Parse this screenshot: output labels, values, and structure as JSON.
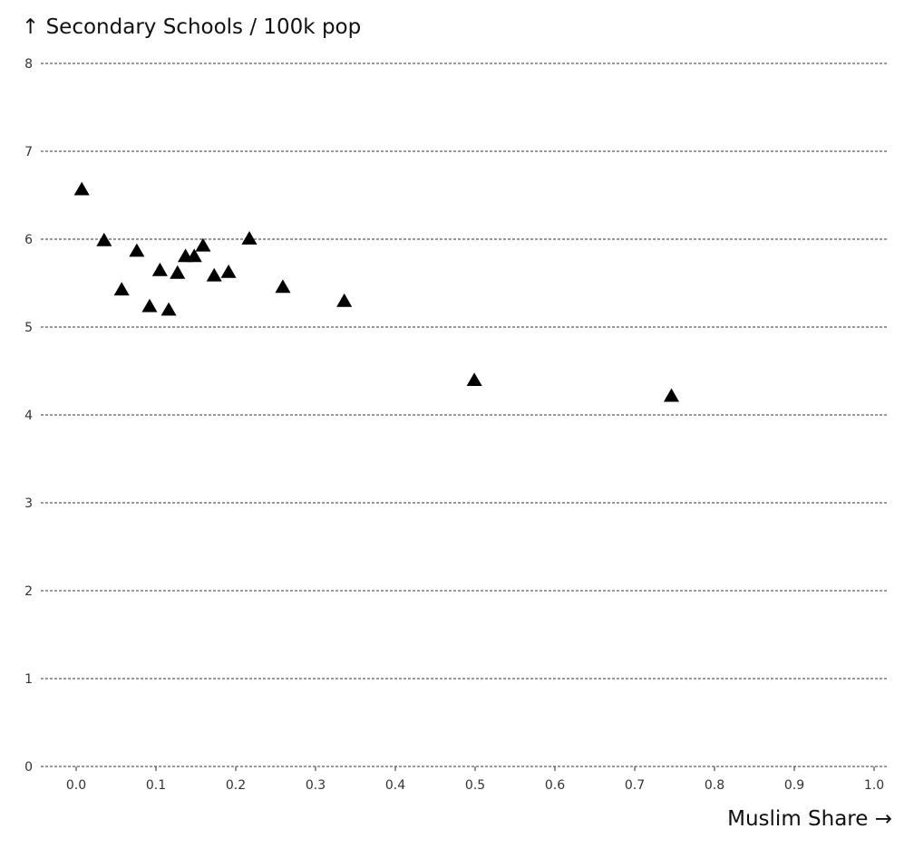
{
  "chart_data": {
    "type": "scatter",
    "ylabel": "↑ Secondary Schools / 100k pop",
    "xlabel": "Muslim Share →",
    "xlim": [
      0.0,
      1.0
    ],
    "ylim": [
      0,
      8
    ],
    "x_ticks": [
      "0.0",
      "0.1",
      "0.2",
      "0.3",
      "0.4",
      "0.5",
      "0.6",
      "0.7",
      "0.8",
      "0.9",
      "1.0"
    ],
    "y_ticks": [
      "0",
      "1",
      "2",
      "3",
      "4",
      "5",
      "6",
      "7",
      "8"
    ],
    "grid": "horizontal-dashed",
    "marker": "triangle",
    "marker_color": "#000000",
    "points": [
      {
        "x": 0.007,
        "y": 6.56
      },
      {
        "x": 0.035,
        "y": 5.98
      },
      {
        "x": 0.057,
        "y": 5.42
      },
      {
        "x": 0.076,
        "y": 5.86
      },
      {
        "x": 0.092,
        "y": 5.23
      },
      {
        "x": 0.105,
        "y": 5.64
      },
      {
        "x": 0.116,
        "y": 5.19
      },
      {
        "x": 0.127,
        "y": 5.61
      },
      {
        "x": 0.137,
        "y": 5.8
      },
      {
        "x": 0.148,
        "y": 5.8
      },
      {
        "x": 0.159,
        "y": 5.92
      },
      {
        "x": 0.173,
        "y": 5.58
      },
      {
        "x": 0.191,
        "y": 5.62
      },
      {
        "x": 0.217,
        "y": 6.0
      },
      {
        "x": 0.259,
        "y": 5.45
      },
      {
        "x": 0.336,
        "y": 5.29
      },
      {
        "x": 0.499,
        "y": 4.39
      },
      {
        "x": 0.746,
        "y": 4.21
      }
    ]
  }
}
